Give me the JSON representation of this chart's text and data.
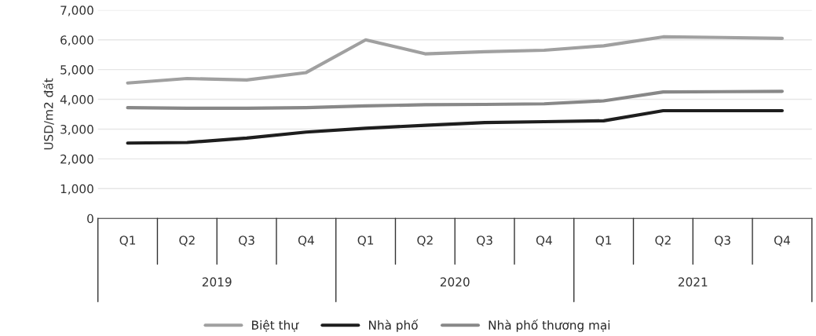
{
  "chart_data": {
    "type": "line",
    "ylabel": "USD/m2 đất",
    "categories": [
      "Q1",
      "Q2",
      "Q3",
      "Q4",
      "Q1",
      "Q2",
      "Q3",
      "Q4",
      "Q1",
      "Q2",
      "Q3",
      "Q4"
    ],
    "annotations": [
      "2019",
      "2020",
      "2021"
    ],
    "series": [
      {
        "name": "Biệt thự",
        "color": "#a0a0a0",
        "values": [
          4550,
          4700,
          4650,
          4900,
          6000,
          5530,
          5600,
          5650,
          5800,
          6100,
          6080,
          6050
        ]
      },
      {
        "name": "Nhà phố",
        "color": "#1e1e1e",
        "values": [
          2530,
          2550,
          2700,
          2900,
          3030,
          3130,
          3220,
          3250,
          3280,
          3620,
          3620,
          3620
        ]
      },
      {
        "name": "Nhà phố thương mại",
        "color": "#888888",
        "values": [
          3720,
          3700,
          3700,
          3720,
          3780,
          3820,
          3830,
          3850,
          3950,
          4250,
          4260,
          4270
        ]
      }
    ],
    "ylim": [
      0,
      7000
    ],
    "yticks": [
      {
        "value": 0,
        "label": "0"
      },
      {
        "value": 1000,
        "label": "1,000"
      },
      {
        "value": 2000,
        "label": "2,000"
      },
      {
        "value": 3000,
        "label": "3,000"
      },
      {
        "value": 4000,
        "label": "4,000"
      },
      {
        "value": 5000,
        "label": "5,000"
      },
      {
        "value": 6000,
        "label": "6,000"
      },
      {
        "value": 7000,
        "label": "7,000"
      }
    ],
    "grid": "y",
    "legend": "bottom",
    "marker": "none",
    "line_style": "solid"
  }
}
